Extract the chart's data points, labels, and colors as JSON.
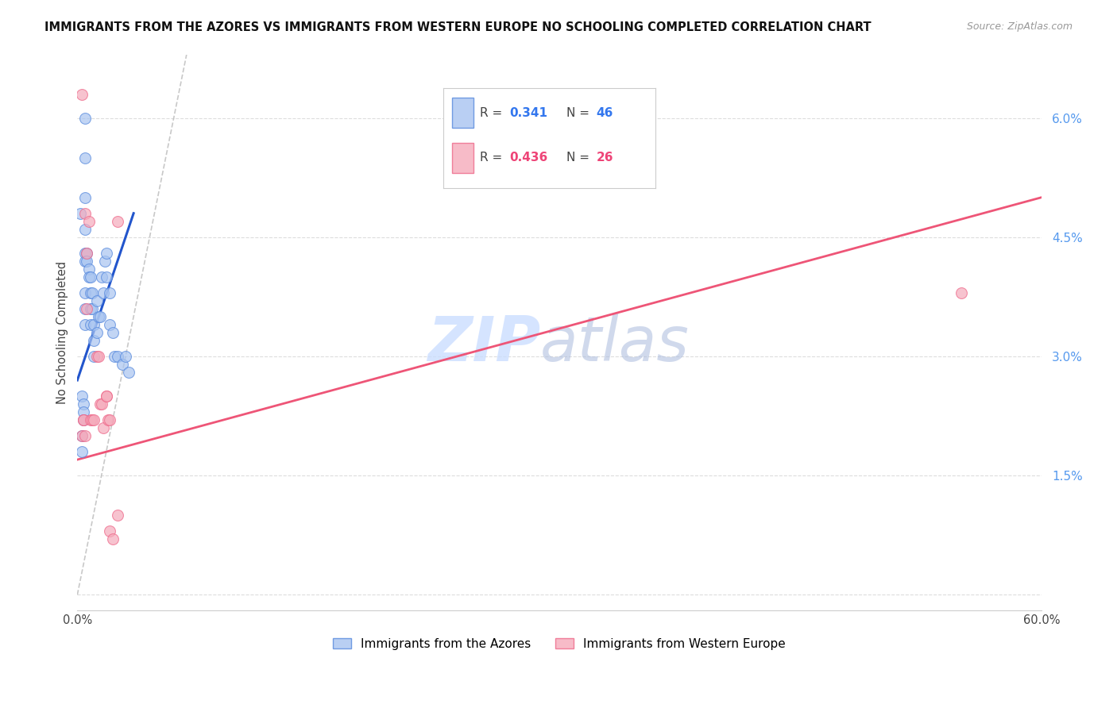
{
  "title": "IMMIGRANTS FROM THE AZORES VS IMMIGRANTS FROM WESTERN EUROPE NO SCHOOLING COMPLETED CORRELATION CHART",
  "source": "Source: ZipAtlas.com",
  "ylabel": "No Schooling Completed",
  "y_ticks": [
    0.0,
    0.015,
    0.03,
    0.045,
    0.06
  ],
  "y_tick_labels": [
    "",
    "1.5%",
    "3.0%",
    "4.5%",
    "6.0%"
  ],
  "xlim": [
    0.0,
    0.6
  ],
  "ylim": [
    -0.002,
    0.068
  ],
  "legend_blue_r": "0.341",
  "legend_blue_n": "46",
  "legend_pink_r": "0.436",
  "legend_pink_n": "26",
  "legend_label_blue": "Immigrants from the Azores",
  "legend_label_pink": "Immigrants from Western Europe",
  "watermark_zip": "ZIP",
  "watermark_atlas": "atlas",
  "blue_color": "#A8C4F0",
  "pink_color": "#F5AABB",
  "blue_edge_color": "#5588DD",
  "pink_edge_color": "#EE6688",
  "blue_line_color": "#2255CC",
  "pink_line_color": "#EE5577",
  "blue_scatter_x": [
    0.002,
    0.005,
    0.005,
    0.005,
    0.005,
    0.005,
    0.005,
    0.005,
    0.005,
    0.005,
    0.006,
    0.006,
    0.007,
    0.007,
    0.008,
    0.008,
    0.008,
    0.008,
    0.009,
    0.009,
    0.01,
    0.01,
    0.01,
    0.012,
    0.012,
    0.013,
    0.014,
    0.015,
    0.016,
    0.017,
    0.018,
    0.018,
    0.02,
    0.02,
    0.022,
    0.023,
    0.025,
    0.028,
    0.03,
    0.032,
    0.003,
    0.004,
    0.004,
    0.004,
    0.003,
    0.003
  ],
  "blue_scatter_y": [
    0.048,
    0.06,
    0.055,
    0.05,
    0.046,
    0.043,
    0.042,
    0.038,
    0.036,
    0.034,
    0.043,
    0.042,
    0.041,
    0.04,
    0.04,
    0.038,
    0.036,
    0.034,
    0.038,
    0.036,
    0.034,
    0.032,
    0.03,
    0.037,
    0.033,
    0.035,
    0.035,
    0.04,
    0.038,
    0.042,
    0.043,
    0.04,
    0.038,
    0.034,
    0.033,
    0.03,
    0.03,
    0.029,
    0.03,
    0.028,
    0.025,
    0.024,
    0.023,
    0.022,
    0.02,
    0.018
  ],
  "pink_scatter_x": [
    0.003,
    0.003,
    0.004,
    0.004,
    0.005,
    0.005,
    0.006,
    0.007,
    0.008,
    0.009,
    0.01,
    0.012,
    0.013,
    0.014,
    0.015,
    0.016,
    0.018,
    0.018,
    0.019,
    0.02,
    0.02,
    0.022,
    0.025,
    0.025,
    0.55,
    0.006
  ],
  "pink_scatter_y": [
    0.063,
    0.02,
    0.022,
    0.022,
    0.048,
    0.02,
    0.043,
    0.047,
    0.022,
    0.022,
    0.022,
    0.03,
    0.03,
    0.024,
    0.024,
    0.021,
    0.025,
    0.025,
    0.022,
    0.022,
    0.008,
    0.007,
    0.047,
    0.01,
    0.038,
    0.036
  ],
  "blue_line_x": [
    0.0,
    0.035
  ],
  "blue_line_y": [
    0.027,
    0.048
  ],
  "pink_line_x": [
    0.0,
    0.6
  ],
  "pink_line_y": [
    0.017,
    0.05
  ],
  "diag_line_x": [
    0.0,
    0.068
  ],
  "diag_line_y": [
    0.0,
    0.068
  ],
  "background_color": "#FFFFFF",
  "grid_color": "#DDDDDD",
  "title_fontsize": 10.5,
  "source_fontsize": 9
}
